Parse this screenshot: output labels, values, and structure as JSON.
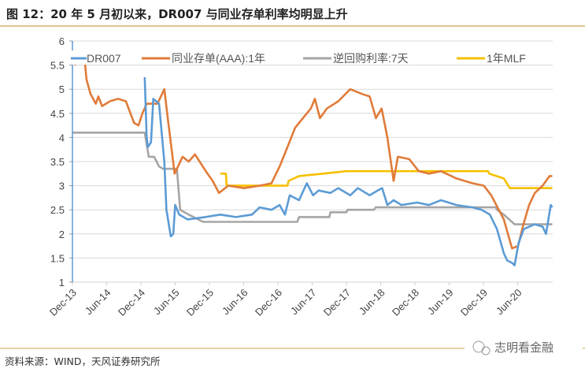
{
  "header": {
    "title": "图 12：20 年 5 月初以来，DR007 与同业存单利率均明显上升"
  },
  "footer": {
    "source": "资料来源：WIND，天风证券研究所",
    "watermark": "志明看金融"
  },
  "colors": {
    "accent_line": "#d9b26f",
    "DR007": "#5b9bd5",
    "ncd": "#e07b39",
    "repo": "#a5a5a5",
    "mlf": "#f5c000",
    "grid": "#d9d9d9"
  },
  "chart_data": {
    "type": "line",
    "title": "",
    "xlabel": "",
    "ylabel": "",
    "ylim": [
      1,
      6
    ],
    "yticks": [
      "1",
      "1.5",
      "2",
      "2.5",
      "3",
      "3.5",
      "4",
      "4.5",
      "5",
      "5.5",
      "6"
    ],
    "xticks": [
      "Dec-13",
      "Jun-14",
      "Dec-14",
      "Jun-15",
      "Dec-15",
      "Jun-16",
      "Dec-16",
      "Jun-17",
      "Dec-17",
      "Jun-18",
      "Dec-18",
      "Jun-19",
      "Dec-19",
      "Jun-20"
    ],
    "xlim": [
      "2013-12-01",
      "2020-12-05"
    ],
    "grid": true,
    "legend_position": "top",
    "series": [
      {
        "name": "DR007",
        "color": "#5b9bd5",
        "points": [
          [
            "2014-12-21",
            5.25
          ],
          [
            "2015-01-01",
            4.0
          ],
          [
            "2015-01-08",
            3.8
          ],
          [
            "2015-01-24",
            3.9
          ],
          [
            "2015-02-06",
            4.8
          ],
          [
            "2015-03-06",
            4.7
          ],
          [
            "2015-04-04",
            3.5
          ],
          [
            "2015-04-15",
            2.5
          ],
          [
            "2015-05-08",
            1.95
          ],
          [
            "2015-05-21",
            2.0
          ],
          [
            "2015-06-01",
            2.6
          ],
          [
            "2015-06-22",
            2.4
          ],
          [
            "2015-08-06",
            2.3
          ],
          [
            "2015-11-10",
            2.35
          ],
          [
            "2016-01-28",
            2.4
          ],
          [
            "2016-04-20",
            2.35
          ],
          [
            "2016-07-15",
            2.4
          ],
          [
            "2016-08-25",
            2.55
          ],
          [
            "2016-10-27",
            2.5
          ],
          [
            "2016-12-10",
            2.6
          ],
          [
            "2017-01-08",
            2.4
          ],
          [
            "2017-02-03",
            2.8
          ],
          [
            "2017-03-22",
            2.7
          ],
          [
            "2017-05-03",
            3.05
          ],
          [
            "2017-06-06",
            2.8
          ],
          [
            "2017-07-05",
            2.9
          ],
          [
            "2017-09-07",
            2.85
          ],
          [
            "2017-10-18",
            2.95
          ],
          [
            "2017-12-21",
            2.8
          ],
          [
            "2018-02-01",
            2.95
          ],
          [
            "2018-04-03",
            2.8
          ],
          [
            "2018-05-15",
            2.9
          ],
          [
            "2018-06-09",
            2.95
          ],
          [
            "2018-07-06",
            2.6
          ],
          [
            "2018-08-09",
            2.7
          ],
          [
            "2018-09-20",
            2.6
          ],
          [
            "2018-12-12",
            2.65
          ],
          [
            "2019-02-15",
            2.6
          ],
          [
            "2019-04-18",
            2.7
          ],
          [
            "2019-07-09",
            2.6
          ],
          [
            "2019-10-03",
            2.55
          ],
          [
            "2019-11-22",
            2.5
          ],
          [
            "2020-01-05",
            2.4
          ],
          [
            "2020-02-12",
            2.1
          ],
          [
            "2020-03-18",
            1.6
          ],
          [
            "2020-04-06",
            1.45
          ],
          [
            "2020-05-01",
            1.4
          ],
          [
            "2020-05-15",
            1.35
          ],
          [
            "2020-06-05",
            1.8
          ],
          [
            "2020-07-03",
            2.1
          ],
          [
            "2020-09-01",
            2.2
          ],
          [
            "2020-10-12",
            2.15
          ],
          [
            "2020-10-30",
            2.0
          ],
          [
            "2020-11-25",
            2.6
          ],
          [
            "2020-12-03",
            2.55
          ]
        ]
      },
      {
        "name": "同业存单(AAA):1年",
        "color": "#e07b39",
        "points": [
          [
            "2013-12-13",
            5.5
          ],
          [
            "2014-01-04",
            5.7
          ],
          [
            "2014-02-03",
            5.7
          ],
          [
            "2014-02-15",
            5.2
          ],
          [
            "2014-03-06",
            4.9
          ],
          [
            "2014-04-04",
            4.7
          ],
          [
            "2014-04-17",
            4.85
          ],
          [
            "2014-05-07",
            4.65
          ],
          [
            "2014-06-18",
            4.75
          ],
          [
            "2014-08-01",
            4.8
          ],
          [
            "2014-09-12",
            4.75
          ],
          [
            "2014-10-25",
            4.3
          ],
          [
            "2014-11-18",
            4.25
          ],
          [
            "2014-12-09",
            4.5
          ],
          [
            "2015-01-01",
            4.7
          ],
          [
            "2015-02-28",
            4.7
          ],
          [
            "2015-04-04",
            5.0
          ],
          [
            "2015-04-25",
            4.3
          ],
          [
            "2015-05-28",
            3.25
          ],
          [
            "2015-07-10",
            3.6
          ],
          [
            "2015-08-12",
            3.5
          ],
          [
            "2015-09-15",
            3.65
          ],
          [
            "2015-11-12",
            3.3
          ],
          [
            "2015-12-18",
            3.1
          ],
          [
            "2016-01-21",
            2.85
          ],
          [
            "2016-03-10",
            3.0
          ],
          [
            "2016-06-03",
            2.95
          ],
          [
            "2016-08-25",
            3.0
          ],
          [
            "2016-10-27",
            3.05
          ],
          [
            "2016-12-10",
            3.4
          ],
          [
            "2017-01-21",
            3.8
          ],
          [
            "2017-03-01",
            4.2
          ],
          [
            "2017-04-12",
            4.4
          ],
          [
            "2017-05-24",
            4.6
          ],
          [
            "2017-06-15",
            4.8
          ],
          [
            "2017-07-12",
            4.4
          ],
          [
            "2017-08-18",
            4.6
          ],
          [
            "2017-10-18",
            4.75
          ],
          [
            "2017-12-21",
            5.0
          ],
          [
            "2018-02-24",
            4.9
          ],
          [
            "2018-04-03",
            4.85
          ],
          [
            "2018-05-06",
            4.4
          ],
          [
            "2018-06-06",
            4.6
          ],
          [
            "2018-07-06",
            4.0
          ],
          [
            "2018-08-09",
            3.1
          ],
          [
            "2018-09-01",
            3.6
          ],
          [
            "2018-11-01",
            3.55
          ],
          [
            "2018-12-21",
            3.3
          ],
          [
            "2019-02-15",
            3.25
          ],
          [
            "2019-04-18",
            3.3
          ],
          [
            "2019-07-09",
            3.15
          ],
          [
            "2019-10-03",
            3.05
          ],
          [
            "2019-12-03",
            3.0
          ],
          [
            "2020-01-12",
            2.8
          ],
          [
            "2020-03-18",
            2.3
          ],
          [
            "2020-05-01",
            1.7
          ],
          [
            "2020-06-03",
            1.75
          ],
          [
            "2020-07-01",
            2.2
          ],
          [
            "2020-08-01",
            2.6
          ],
          [
            "2020-09-01",
            2.85
          ],
          [
            "2020-10-12",
            3.0
          ],
          [
            "2020-11-18",
            3.2
          ],
          [
            "2020-12-03",
            3.2
          ]
        ]
      },
      {
        "name": "逆回购利率:7天",
        "color": "#a5a5a5",
        "points": [
          [
            "2013-12-01",
            4.1
          ],
          [
            "2014-12-21",
            4.1
          ],
          [
            "2015-01-12",
            3.6
          ],
          [
            "2015-02-10",
            3.6
          ],
          [
            "2015-03-06",
            3.4
          ],
          [
            "2015-03-27",
            3.35
          ],
          [
            "2015-06-10",
            3.35
          ],
          [
            "2015-06-27",
            2.5
          ],
          [
            "2015-08-12",
            2.4
          ],
          [
            "2015-10-27",
            2.25
          ],
          [
            "2017-03-13",
            2.25
          ],
          [
            "2017-03-22",
            2.35
          ],
          [
            "2017-09-01",
            2.35
          ],
          [
            "2017-09-07",
            2.45
          ],
          [
            "2017-12-01",
            2.45
          ],
          [
            "2017-12-07",
            2.5
          ],
          [
            "2018-04-25",
            2.5
          ],
          [
            "2018-05-05",
            2.55
          ],
          [
            "2020-02-06",
            2.55
          ],
          [
            "2020-02-12",
            2.5
          ],
          [
            "2020-03-18",
            2.4
          ],
          [
            "2020-05-15",
            2.2
          ],
          [
            "2020-12-03",
            2.2
          ]
        ]
      },
      {
        "name": "1年MLF",
        "color": "#f5c000",
        "points": [
          [
            "2016-01-28",
            3.25
          ],
          [
            "2016-02-28",
            3.25
          ],
          [
            "2016-03-01",
            3.0
          ],
          [
            "2017-01-21",
            3.0
          ],
          [
            "2017-01-27",
            3.1
          ],
          [
            "2017-03-22",
            3.2
          ],
          [
            "2017-07-28",
            3.25
          ],
          [
            "2017-12-01",
            3.3
          ],
          [
            "2019-12-25",
            3.3
          ],
          [
            "2019-12-31",
            3.25
          ],
          [
            "2020-03-18",
            3.15
          ],
          [
            "2020-04-20",
            2.95
          ],
          [
            "2020-12-03",
            2.95
          ]
        ]
      }
    ]
  }
}
